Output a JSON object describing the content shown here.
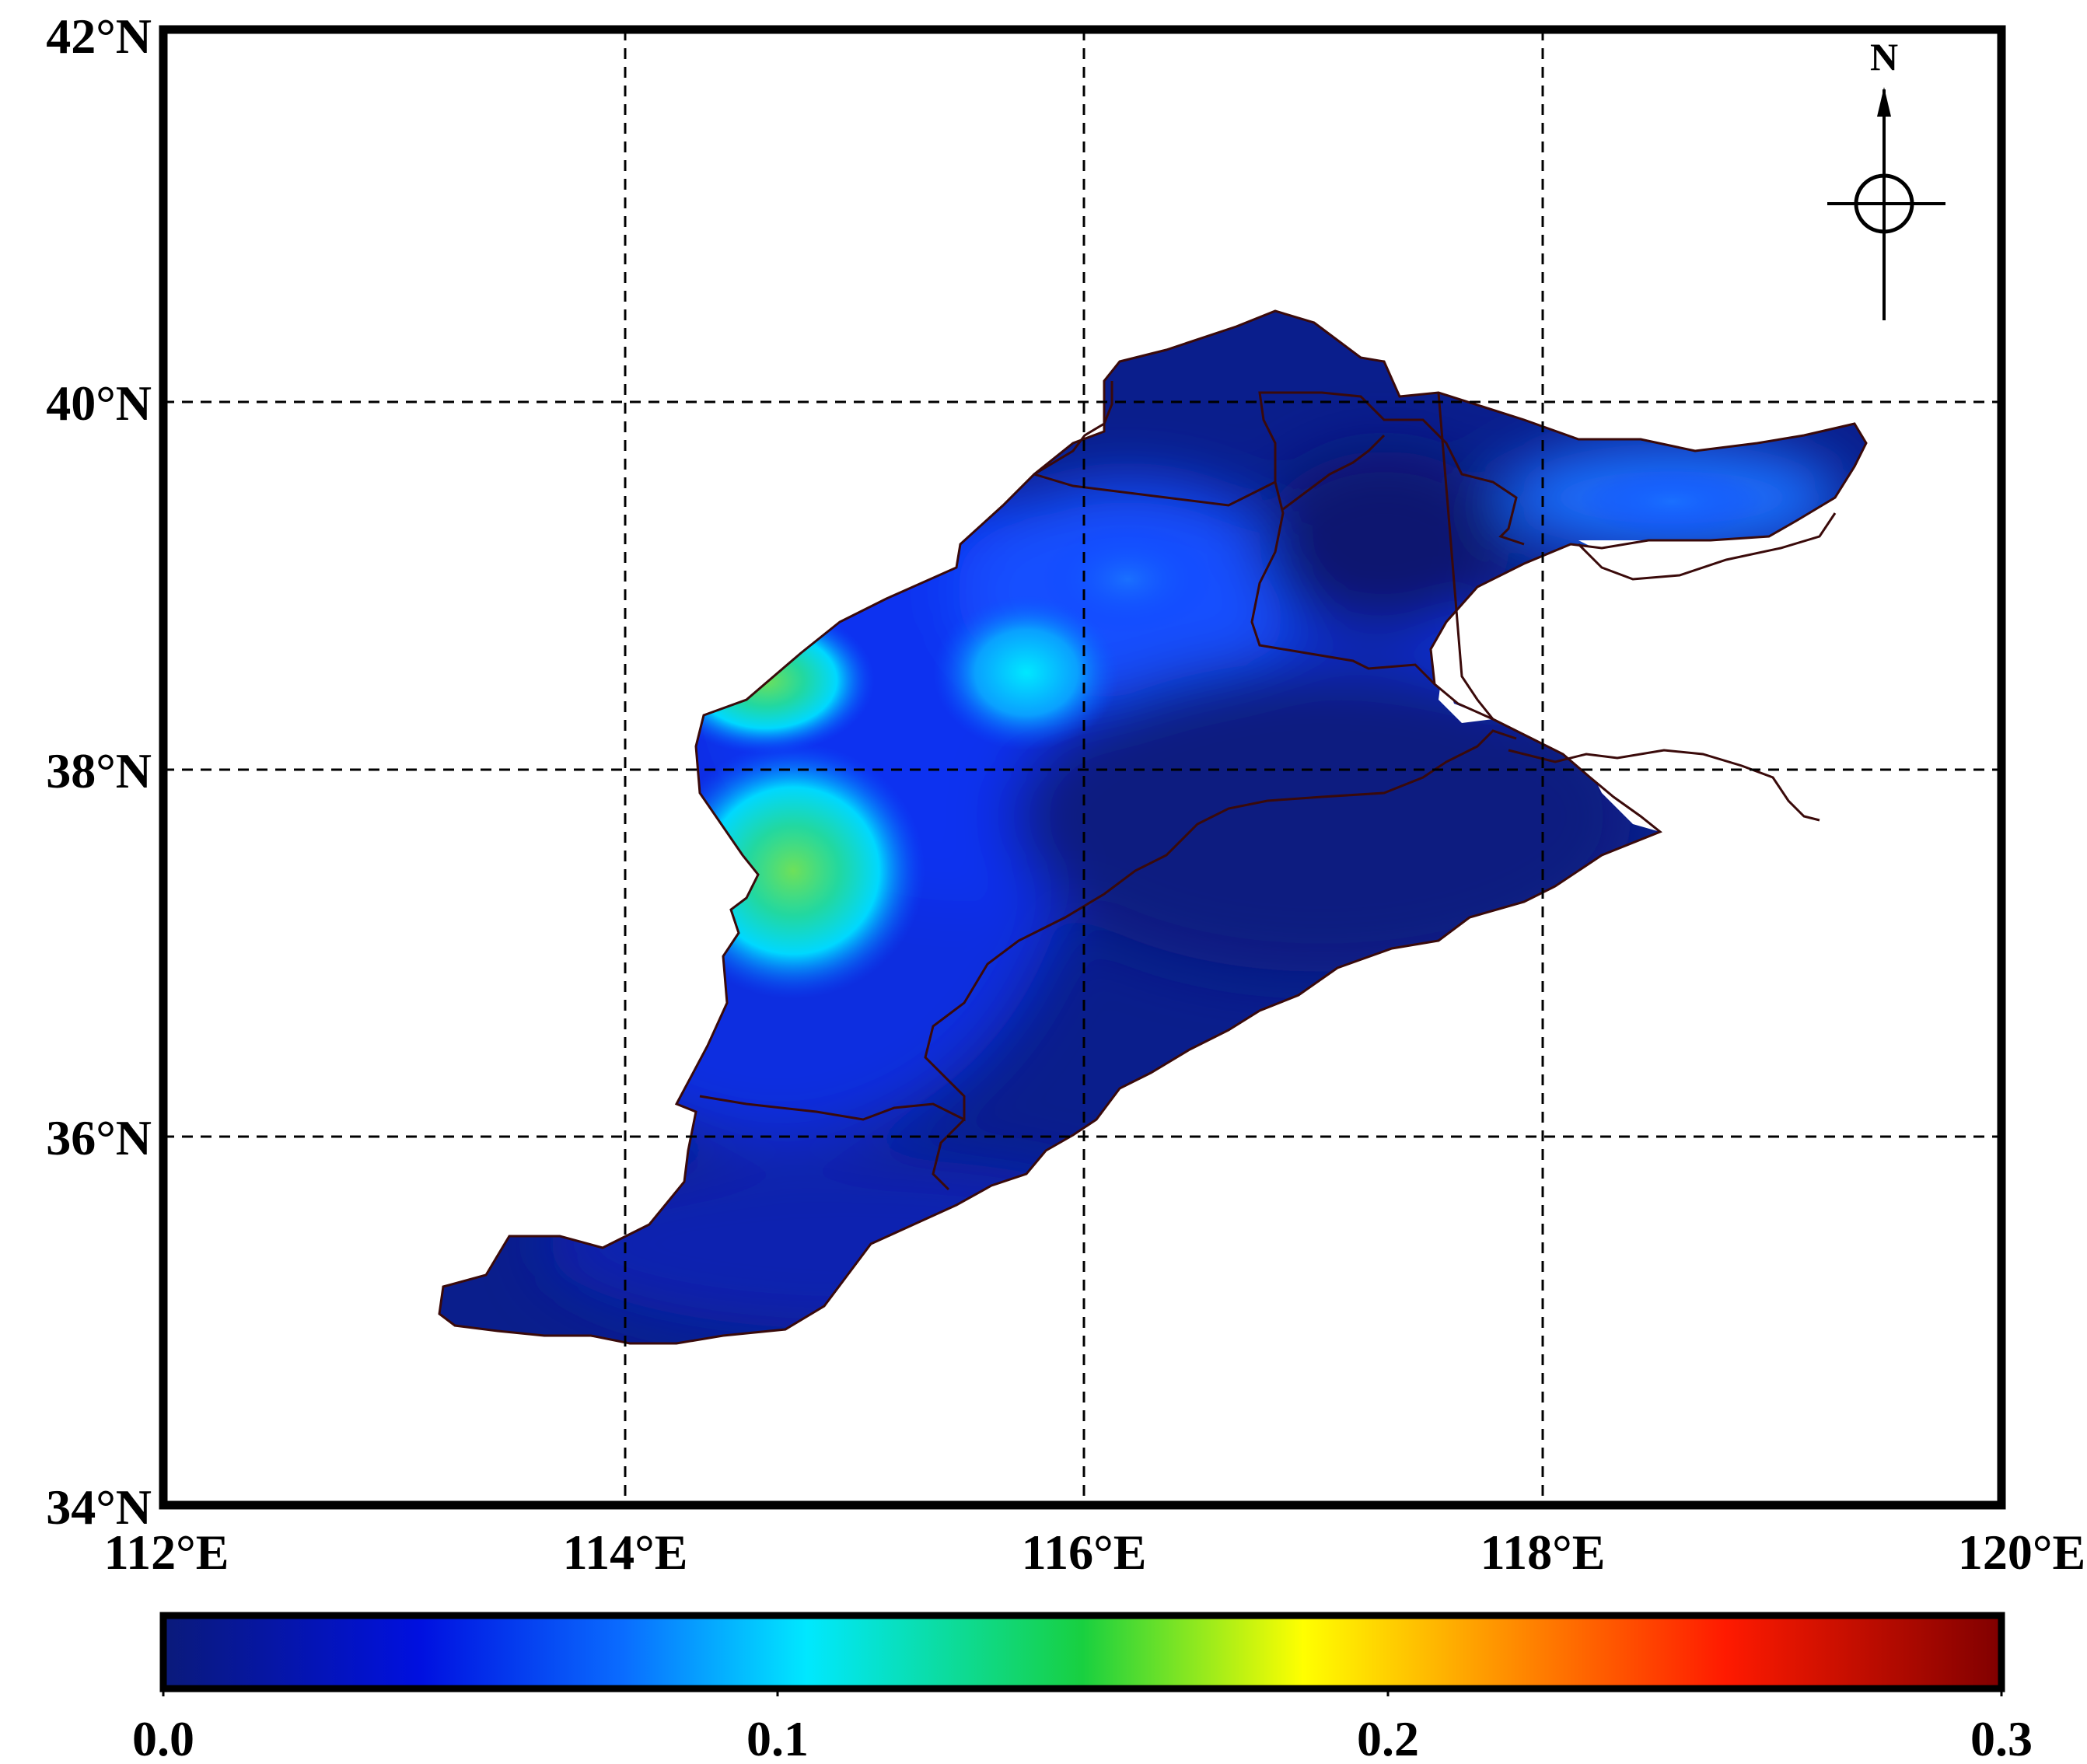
{
  "map": {
    "lat_labels": [
      "42°N",
      "40°N",
      "38°N",
      "36°N",
      "34°N"
    ],
    "lon_labels": [
      "112°E",
      "114°E",
      "116°E",
      "118°E",
      "120°E"
    ],
    "north_label": "N",
    "extent": {
      "lon": [
        112,
        120
      ],
      "lat": [
        34,
        42
      ]
    },
    "gridlines": {
      "lon": [
        114,
        116,
        118
      ],
      "lat": [
        36,
        38,
        40
      ],
      "style": "dashed"
    }
  },
  "colorbar": {
    "tick_labels": [
      "0.0",
      "0.1",
      "0.2",
      "0.3"
    ],
    "range": [
      0.0,
      0.3
    ],
    "colors": [
      "#0a1a7a",
      "#0010e0",
      "#0a6cff",
      "#00e8ff",
      "#18d040",
      "#ffff00",
      "#ff9a00",
      "#ff1a00",
      "#800000"
    ]
  },
  "colors": {
    "frame": "#000000",
    "boundary": "#3a0a0a",
    "low": "#0a1e8c",
    "mid": "#0022d8",
    "high": "#50e05a"
  }
}
